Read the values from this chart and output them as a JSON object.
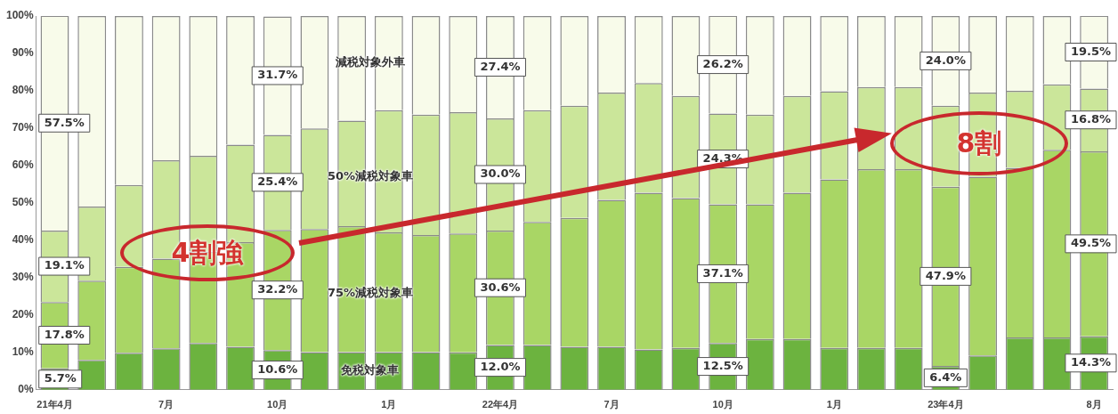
{
  "chart_data": {
    "type": "bar",
    "stacked": true,
    "grid": false,
    "legend": false,
    "categories": [
      "21年4月",
      null,
      null,
      "7月",
      null,
      null,
      "10月",
      null,
      null,
      "1月",
      null,
      null,
      "22年4月",
      null,
      null,
      "7月",
      null,
      null,
      "10月",
      null,
      null,
      "1月",
      null,
      null,
      "23年4月",
      null,
      null,
      null,
      "8月"
    ],
    "ylim": [
      0,
      100
    ],
    "yticks": [
      {
        "value": 0,
        "label": "0%"
      },
      {
        "value": 10,
        "label": "10%"
      },
      {
        "value": 20,
        "label": "20%"
      },
      {
        "value": 30,
        "label": "30%"
      },
      {
        "value": 40,
        "label": "40%"
      },
      {
        "value": 50,
        "label": "50%"
      },
      {
        "value": 60,
        "label": "60%"
      },
      {
        "value": 70,
        "label": "70%"
      },
      {
        "value": 80,
        "label": "80%"
      },
      {
        "value": 90,
        "label": "90%"
      },
      {
        "value": 100,
        "label": "100%"
      }
    ],
    "series": [
      {
        "name": "免税対象車",
        "color": "#6cb33f",
        "values": [
          5.7,
          8.0,
          9.9,
          11.1,
          12.5,
          11.5,
          10.6,
          10.1,
          10.1,
          10.1,
          10.1,
          10.0,
          12.0,
          12.0,
          11.5,
          11.5,
          10.8,
          11.2,
          12.5,
          13.6,
          13.6,
          11.2,
          11.2,
          11.2,
          6.4,
          9.2,
          14.0,
          14.0,
          14.3
        ],
        "value_labels": [
          "5.7%",
          null,
          null,
          null,
          null,
          null,
          "10.6%",
          null,
          null,
          null,
          null,
          null,
          "12.0%",
          null,
          null,
          null,
          null,
          null,
          "12.5%",
          null,
          null,
          null,
          null,
          null,
          "6.4%",
          null,
          null,
          null,
          "14.3%"
        ]
      },
      {
        "name": "75%減税対象車",
        "color": "#a9d665",
        "values": [
          17.8,
          21.2,
          23.0,
          24.0,
          24.5,
          28.0,
          32.2,
          32.9,
          33.7,
          32.0,
          31.3,
          31.8,
          30.6,
          32.9,
          34.5,
          39.3,
          41.9,
          40.1,
          37.1,
          36.0,
          39.1,
          45.1,
          47.8,
          47.8,
          47.9,
          47.8,
          45.4,
          50.2,
          49.5
        ],
        "value_labels": [
          "17.8%",
          null,
          null,
          null,
          null,
          null,
          "32.2%",
          null,
          null,
          null,
          null,
          null,
          "30.6%",
          null,
          null,
          null,
          null,
          null,
          "37.1%",
          null,
          null,
          null,
          null,
          null,
          "47.9%",
          null,
          null,
          null,
          "49.5%"
        ]
      },
      {
        "name": "50%減税対象車",
        "color": "#cbe69a",
        "values": [
          19.1,
          19.8,
          21.9,
          26.3,
          25.6,
          26.1,
          25.4,
          26.9,
          28.2,
          32.7,
          32.2,
          32.5,
          30.0,
          29.9,
          30.0,
          28.7,
          29.4,
          27.3,
          24.3,
          24.0,
          25.9,
          23.6,
          22.0,
          22.0,
          21.7,
          22.5,
          20.6,
          17.5,
          16.8
        ],
        "value_labels": [
          "19.1%",
          null,
          null,
          null,
          null,
          null,
          "25.4%",
          null,
          null,
          null,
          null,
          null,
          "30.0%",
          null,
          null,
          null,
          null,
          null,
          "24.3%",
          null,
          null,
          null,
          null,
          null,
          null,
          null,
          null,
          null,
          "16.8%"
        ]
      },
      {
        "name": "減税対象外車",
        "color": "#f8fbea",
        "values": [
          57.5,
          51.0,
          45.2,
          38.6,
          37.4,
          34.4,
          31.7,
          30.1,
          28.0,
          25.2,
          26.4,
          25.7,
          27.4,
          25.2,
          24.0,
          20.5,
          17.9,
          21.4,
          26.2,
          26.4,
          21.4,
          20.1,
          19.0,
          19.0,
          24.0,
          20.5,
          20.0,
          18.3,
          19.5
        ],
        "value_labels": [
          "57.5%",
          null,
          null,
          null,
          null,
          null,
          "31.7%",
          null,
          null,
          null,
          null,
          null,
          "27.4%",
          null,
          null,
          null,
          null,
          null,
          "26.2%",
          null,
          null,
          null,
          null,
          null,
          "24.0%",
          null,
          null,
          null,
          "19.5%"
        ]
      }
    ],
    "annotations": [
      "4割強",
      "8割"
    ]
  }
}
